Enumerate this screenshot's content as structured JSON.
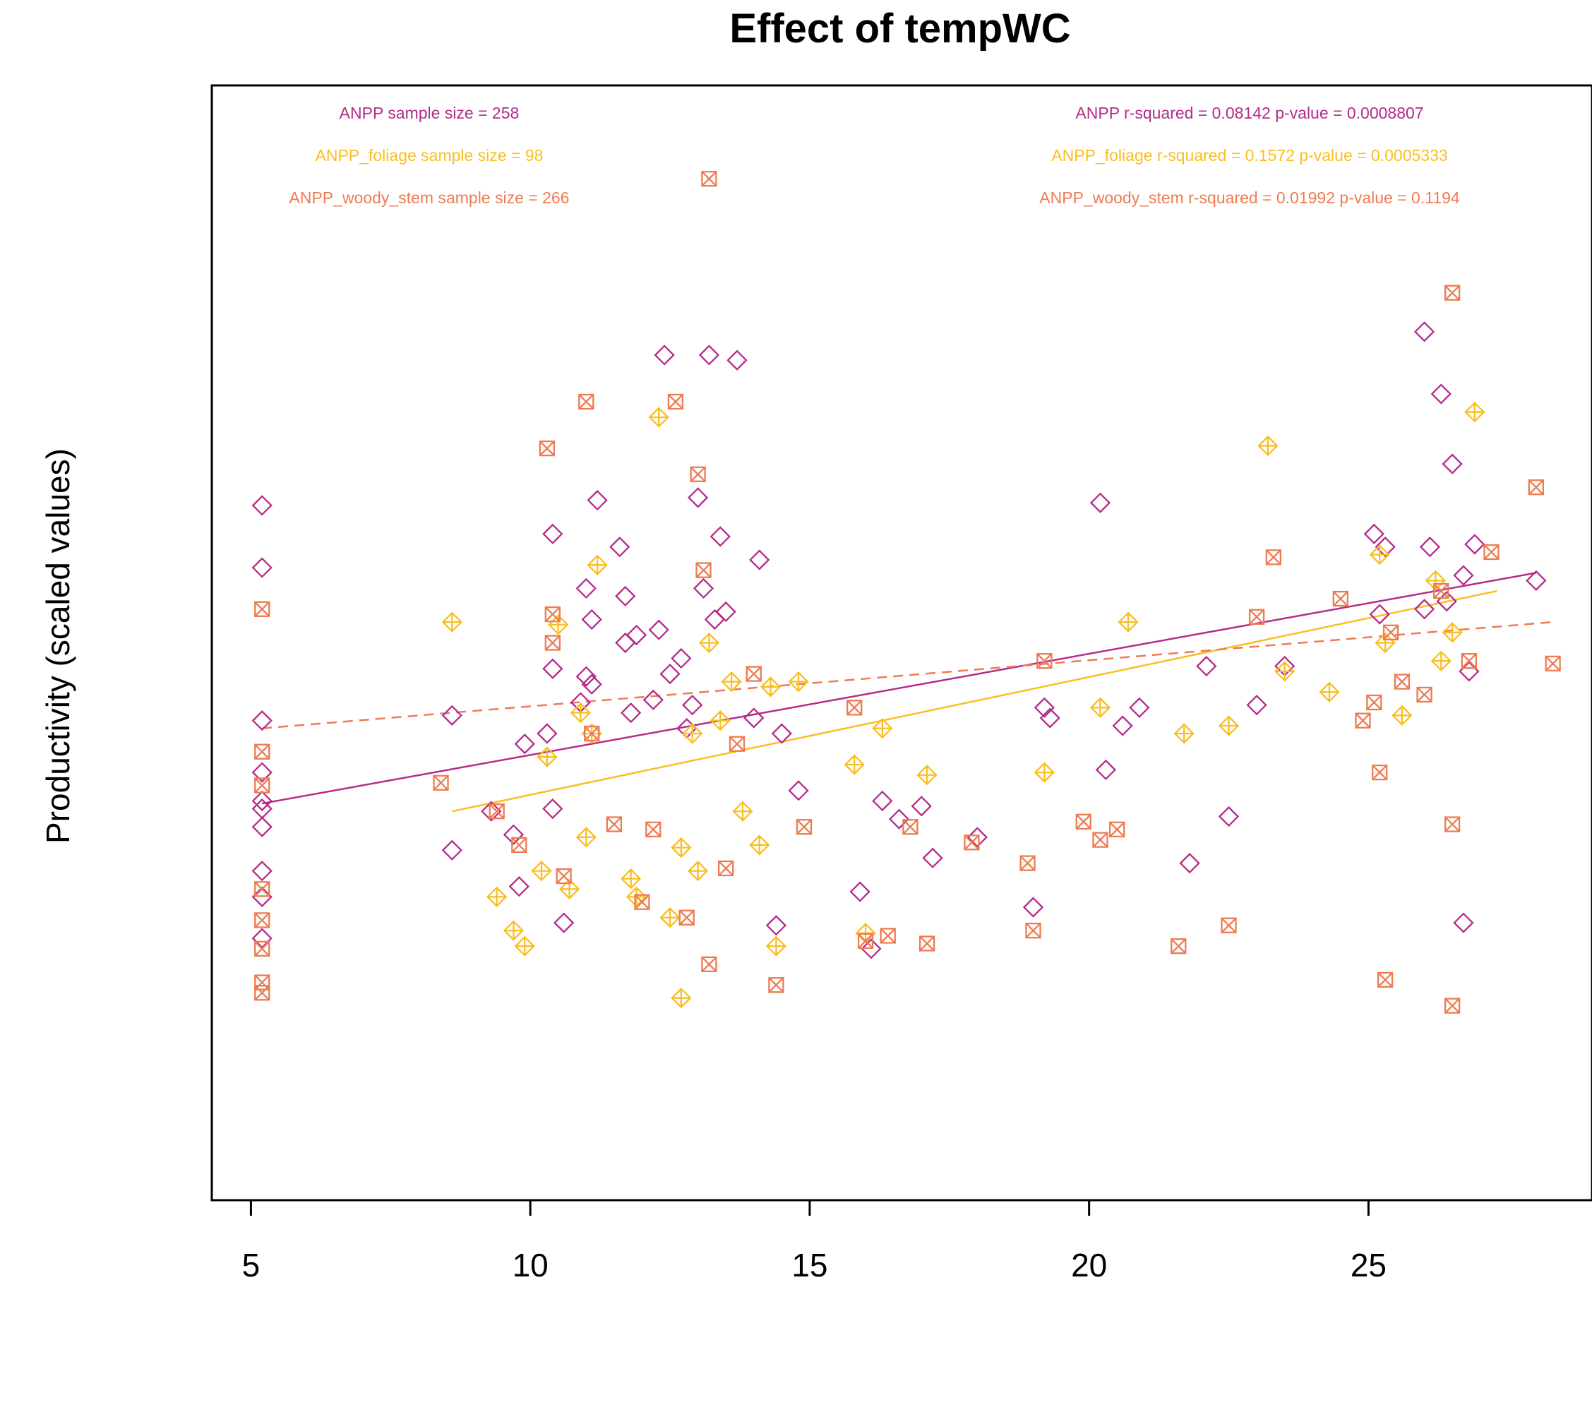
{
  "chart_data": {
    "type": "scatter",
    "title": "Effect of tempWC",
    "xlabel": "",
    "ylabel": "Productivity (scaled values)",
    "xlim": [
      4.3,
      29
    ],
    "ylim": [
      -1.7,
      2.6
    ],
    "x_ticks": [
      5,
      10,
      15,
      20,
      25
    ],
    "x_tick_labels": [
      "5",
      "10",
      "15",
      "20",
      "25"
    ],
    "grid": false,
    "series": [
      {
        "name": "ANPP",
        "color": "#B52A8A",
        "marker": "diamond",
        "points": [
          [
            5.2,
            0.98
          ],
          [
            5.2,
            0.74
          ],
          [
            5.2,
            0.15
          ],
          [
            5.2,
            -0.05
          ],
          [
            5.2,
            -0.16
          ],
          [
            5.2,
            -0.19
          ],
          [
            5.2,
            -0.26
          ],
          [
            5.2,
            -0.43
          ],
          [
            5.2,
            -0.53
          ],
          [
            5.2,
            -0.69
          ],
          [
            8.6,
            -0.35
          ],
          [
            8.6,
            0.17
          ],
          [
            9.3,
            -0.2
          ],
          [
            9.7,
            -0.29
          ],
          [
            9.8,
            -0.49
          ],
          [
            9.9,
            0.06
          ],
          [
            10.3,
            0.1
          ],
          [
            10.4,
            -0.19
          ],
          [
            10.4,
            0.87
          ],
          [
            10.4,
            0.35
          ],
          [
            10.6,
            -0.63
          ],
          [
            10.9,
            0.22
          ],
          [
            11.0,
            0.32
          ],
          [
            11.0,
            0.66
          ],
          [
            11.1,
            0.29
          ],
          [
            11.1,
            0.54
          ],
          [
            11.2,
            1.0
          ],
          [
            11.6,
            0.82
          ],
          [
            11.7,
            0.63
          ],
          [
            11.7,
            0.45
          ],
          [
            11.8,
            0.18
          ],
          [
            11.9,
            0.48
          ],
          [
            12.2,
            0.23
          ],
          [
            12.3,
            0.5
          ],
          [
            12.4,
            1.56
          ],
          [
            12.5,
            0.33
          ],
          [
            12.7,
            0.39
          ],
          [
            12.8,
            0.12
          ],
          [
            12.9,
            0.21
          ],
          [
            13.0,
            1.01
          ],
          [
            13.1,
            0.66
          ],
          [
            13.2,
            1.56
          ],
          [
            13.3,
            0.54
          ],
          [
            13.4,
            0.86
          ],
          [
            13.5,
            0.57
          ],
          [
            13.7,
            1.54
          ],
          [
            14.0,
            0.16
          ],
          [
            14.1,
            0.77
          ],
          [
            14.4,
            -0.64
          ],
          [
            14.5,
            0.1
          ],
          [
            14.8,
            -0.12
          ],
          [
            15.9,
            -0.51
          ],
          [
            16.1,
            -0.73
          ],
          [
            16.3,
            -0.16
          ],
          [
            16.6,
            -0.23
          ],
          [
            17.0,
            -0.18
          ],
          [
            17.2,
            -0.38
          ],
          [
            18.0,
            -0.3
          ],
          [
            19.0,
            -0.57
          ],
          [
            19.2,
            0.2
          ],
          [
            19.3,
            0.16
          ],
          [
            20.2,
            0.99
          ],
          [
            20.3,
            -0.04
          ],
          [
            20.6,
            0.13
          ],
          [
            20.9,
            0.2
          ],
          [
            21.8,
            -0.4
          ],
          [
            22.1,
            0.36
          ],
          [
            22.5,
            -0.22
          ],
          [
            23.0,
            0.21
          ],
          [
            23.5,
            0.36
          ],
          [
            25.1,
            0.87
          ],
          [
            25.2,
            0.56
          ],
          [
            25.3,
            0.82
          ],
          [
            26.0,
            0.58
          ],
          [
            26.1,
            0.82
          ],
          [
            26.3,
            1.41
          ],
          [
            26.4,
            0.61
          ],
          [
            26.5,
            1.14
          ],
          [
            26.7,
            0.71
          ],
          [
            26.8,
            0.34
          ],
          [
            26.7,
            -0.63
          ],
          [
            28.0,
            0.69
          ],
          [
            26.0,
            1.65
          ],
          [
            26.9,
            0.83
          ]
        ]
      },
      {
        "name": "ANPP_foliage",
        "color": "#F9BE21",
        "marker": "diamond-plus",
        "points": [
          [
            8.6,
            0.53
          ],
          [
            9.4,
            -0.53
          ],
          [
            9.7,
            -0.66
          ],
          [
            9.9,
            -0.72
          ],
          [
            10.2,
            -0.43
          ],
          [
            10.3,
            0.01
          ],
          [
            10.5,
            0.52
          ],
          [
            10.7,
            -0.5
          ],
          [
            10.9,
            0.18
          ],
          [
            11.0,
            -0.3
          ],
          [
            11.1,
            0.1
          ],
          [
            11.2,
            0.75
          ],
          [
            11.8,
            -0.46
          ],
          [
            11.9,
            -0.53
          ],
          [
            12.3,
            1.32
          ],
          [
            12.5,
            -0.61
          ],
          [
            12.7,
            -0.34
          ],
          [
            12.7,
            -0.92
          ],
          [
            12.9,
            0.1
          ],
          [
            13.0,
            -0.43
          ],
          [
            13.2,
            0.45
          ],
          [
            13.4,
            0.15
          ],
          [
            13.6,
            0.3
          ],
          [
            13.8,
            -0.2
          ],
          [
            14.1,
            -0.33
          ],
          [
            14.3,
            0.28
          ],
          [
            14.4,
            -0.72
          ],
          [
            14.8,
            0.3
          ],
          [
            15.8,
            -0.02
          ],
          [
            16.0,
            -0.67
          ],
          [
            16.3,
            0.12
          ],
          [
            17.1,
            -0.06
          ],
          [
            19.2,
            -0.05
          ],
          [
            20.2,
            0.2
          ],
          [
            20.7,
            0.53
          ],
          [
            21.7,
            0.1
          ],
          [
            22.5,
            0.13
          ],
          [
            23.2,
            1.21
          ],
          [
            23.5,
            0.34
          ],
          [
            24.3,
            0.26
          ],
          [
            25.2,
            0.79
          ],
          [
            25.3,
            0.45
          ],
          [
            25.6,
            0.17
          ],
          [
            26.2,
            0.69
          ],
          [
            26.3,
            0.38
          ],
          [
            26.5,
            0.49
          ],
          [
            26.9,
            1.34
          ]
        ]
      },
      {
        "name": "ANPP_woody_stem",
        "color": "#EE7B51",
        "marker": "square-x",
        "points": [
          [
            5.2,
            0.58
          ],
          [
            5.2,
            0.03
          ],
          [
            5.2,
            -0.1
          ],
          [
            5.2,
            -0.5
          ],
          [
            5.2,
            -0.62
          ],
          [
            5.2,
            -0.73
          ],
          [
            5.2,
            -0.86
          ],
          [
            5.2,
            -0.9
          ],
          [
            8.4,
            -0.09
          ],
          [
            9.4,
            -0.2
          ],
          [
            9.8,
            -0.33
          ],
          [
            10.3,
            1.2
          ],
          [
            10.4,
            0.45
          ],
          [
            10.4,
            0.56
          ],
          [
            10.6,
            -0.45
          ],
          [
            11.0,
            1.38
          ],
          [
            11.1,
            0.1
          ],
          [
            11.5,
            -0.25
          ],
          [
            12.0,
            -0.55
          ],
          [
            12.2,
            -0.27
          ],
          [
            12.6,
            1.38
          ],
          [
            12.8,
            -0.61
          ],
          [
            13.0,
            1.1
          ],
          [
            13.1,
            0.73
          ],
          [
            13.2,
            -0.79
          ],
          [
            13.5,
            -0.42
          ],
          [
            13.7,
            0.06
          ],
          [
            14.0,
            0.33
          ],
          [
            14.4,
            -0.87
          ],
          [
            14.9,
            -0.26
          ],
          [
            15.8,
            0.2
          ],
          [
            16.0,
            -0.7
          ],
          [
            16.4,
            -0.68
          ],
          [
            16.8,
            -0.26
          ],
          [
            17.1,
            -0.71
          ],
          [
            17.9,
            -0.32
          ],
          [
            18.9,
            -0.4
          ],
          [
            19.0,
            -0.66
          ],
          [
            19.2,
            0.38
          ],
          [
            19.9,
            -0.24
          ],
          [
            20.2,
            -0.31
          ],
          [
            20.5,
            -0.27
          ],
          [
            21.6,
            -0.72
          ],
          [
            22.5,
            -0.64
          ],
          [
            23.0,
            0.55
          ],
          [
            23.3,
            0.78
          ],
          [
            24.5,
            0.62
          ],
          [
            24.9,
            0.15
          ],
          [
            25.1,
            0.22
          ],
          [
            25.2,
            -0.05
          ],
          [
            25.4,
            0.49
          ],
          [
            25.6,
            0.3
          ],
          [
            26.0,
            0.25
          ],
          [
            26.3,
            0.65
          ],
          [
            26.5,
            -0.25
          ],
          [
            26.8,
            0.38
          ],
          [
            27.2,
            0.8
          ],
          [
            28.0,
            1.05
          ],
          [
            28.3,
            0.37
          ],
          [
            26.5,
            -0.95
          ],
          [
            26.5,
            1.8
          ],
          [
            25.3,
            -0.85
          ],
          [
            13.2,
            2.24
          ]
        ]
      }
    ],
    "fit_lines": [
      {
        "series": "ANPP",
        "color": "#B52A8A",
        "style": "solid",
        "x": [
          5.2,
          28.0
        ],
        "y": [
          -0.17,
          0.72
        ]
      },
      {
        "series": "ANPP_foliage",
        "color": "#F9BE21",
        "style": "solid",
        "x": [
          8.6,
          27.3
        ],
        "y": [
          -0.2,
          0.65
        ]
      },
      {
        "series": "ANPP_woody_stem",
        "color": "#EE7B51",
        "style": "dashed",
        "x": [
          5.2,
          28.3
        ],
        "y": [
          0.12,
          0.53
        ]
      }
    ],
    "annotations": [
      {
        "text": "ANPP sample size = 258",
        "color": "#B52A8A",
        "side": "left",
        "row": 1
      },
      {
        "text": "ANPP_foliage sample size = 98",
        "color": "#F9BE21",
        "side": "left",
        "row": 2
      },
      {
        "text": "ANPP_woody_stem sample size = 266",
        "color": "#EE7B51",
        "side": "left",
        "row": 3
      },
      {
        "text": "ANPP r-squared =  0.08142 p-value =  0.0008807",
        "color": "#B52A8A",
        "side": "right",
        "row": 1
      },
      {
        "text": "ANPP_foliage r-squared =  0.1572 p-value =  0.0005333",
        "color": "#F9BE21",
        "side": "right",
        "row": 2
      },
      {
        "text": "ANPP_woody_stem r-squared =  0.01992 p-value =  0.1194",
        "color": "#EE7B51",
        "side": "right",
        "row": 3
      }
    ]
  }
}
